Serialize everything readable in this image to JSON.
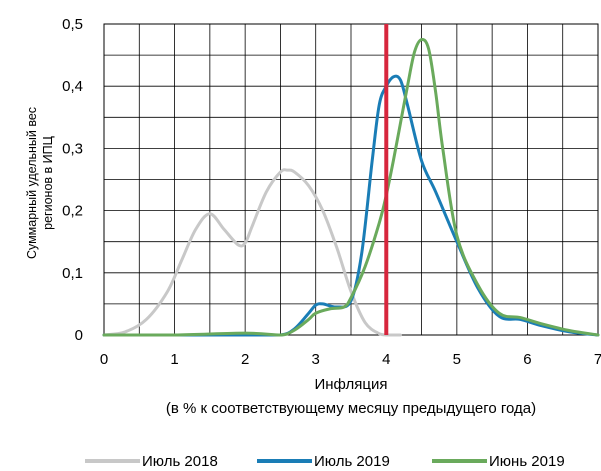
{
  "chart_data": {
    "type": "line",
    "xlabel": "Инфляция",
    "xlabel_line2": "(в % к соответствующему месяцу предыдущего года)",
    "ylabel_line1": "Суммарный удельный вес",
    "ylabel_line2": "регионов в ИПЦ",
    "xlim": [
      0,
      7
    ],
    "ylim": [
      0,
      0.5
    ],
    "xticks": [
      0,
      1,
      2,
      3,
      4,
      5,
      6,
      7
    ],
    "xtick_labels": [
      "0",
      "1",
      "2",
      "3",
      "4",
      "5",
      "6",
      "7"
    ],
    "yticks": [
      0,
      0.1,
      0.2,
      0.3,
      0.4,
      0.5
    ],
    "ytick_labels": [
      "0",
      "0,1",
      "0,2",
      "0,3",
      "0,4",
      "0,5"
    ],
    "grid": true,
    "legend_position": "bottom",
    "reference_line": {
      "x": 4.0,
      "color": "#d7263d"
    },
    "series": [
      {
        "name": "Июль 2018",
        "color": "#c8c8c8",
        "x": [
          0.0,
          0.3,
          0.6,
          0.9,
          1.1,
          1.3,
          1.5,
          1.7,
          1.9,
          2.0,
          2.1,
          2.3,
          2.5,
          2.6,
          2.7,
          2.9,
          3.1,
          3.3,
          3.5,
          3.7,
          3.9,
          4.0,
          4.2
        ],
        "y": [
          0.0,
          0.005,
          0.025,
          0.07,
          0.12,
          0.17,
          0.195,
          0.17,
          0.145,
          0.148,
          0.175,
          0.23,
          0.262,
          0.265,
          0.262,
          0.24,
          0.2,
          0.14,
          0.07,
          0.02,
          0.002,
          0.0,
          0.0
        ]
      },
      {
        "name": "Июль 2019",
        "color": "#1a7db6",
        "x": [
          0.0,
          1.0,
          2.0,
          2.5,
          2.7,
          2.9,
          3.0,
          3.1,
          3.3,
          3.5,
          3.65,
          3.8,
          3.9,
          4.0,
          4.1,
          4.2,
          4.3,
          4.5,
          4.7,
          5.0,
          5.3,
          5.6,
          5.9,
          6.2,
          6.6,
          7.0
        ],
        "y": [
          0.0,
          0.0,
          0.0,
          0.0,
          0.01,
          0.035,
          0.048,
          0.05,
          0.045,
          0.055,
          0.13,
          0.28,
          0.37,
          0.4,
          0.415,
          0.41,
          0.37,
          0.28,
          0.23,
          0.15,
          0.075,
          0.03,
          0.025,
          0.015,
          0.005,
          0.0
        ]
      },
      {
        "name": "Июнь 2019",
        "color": "#6aaa5c",
        "x": [
          0.0,
          1.0,
          2.0,
          2.5,
          2.7,
          2.9,
          3.0,
          3.2,
          3.4,
          3.5,
          3.7,
          3.9,
          4.0,
          4.1,
          4.2,
          4.3,
          4.4,
          4.5,
          4.6,
          4.7,
          4.8,
          5.0,
          5.3,
          5.6,
          5.9,
          6.2,
          6.6,
          7.0
        ],
        "y": [
          0.0,
          0.0,
          0.003,
          0.0,
          0.008,
          0.025,
          0.035,
          0.042,
          0.045,
          0.06,
          0.11,
          0.18,
          0.225,
          0.28,
          0.34,
          0.4,
          0.455,
          0.475,
          0.46,
          0.39,
          0.3,
          0.16,
          0.08,
          0.035,
          0.028,
          0.018,
          0.007,
          0.0
        ]
      }
    ]
  }
}
